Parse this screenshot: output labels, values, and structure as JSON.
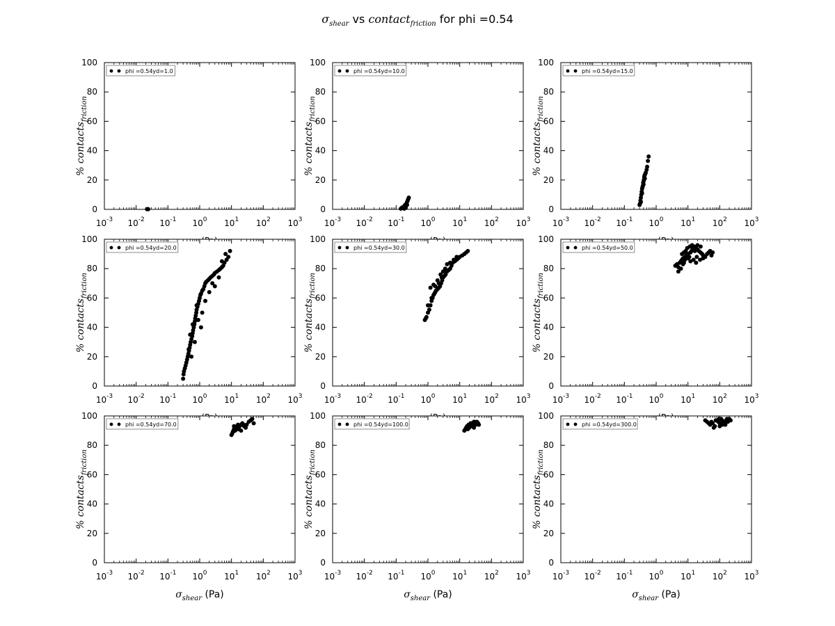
{
  "figure": {
    "title": "σshear vs contactfriction for phi =0.54",
    "title_parts": {
      "sigma": "σ",
      "sigma_sub": "shear",
      "mid": " vs ",
      "contact": "contact",
      "contact_sub": "friction",
      "tail": " for phi =0.54"
    },
    "xlabel": {
      "sigma": "σ",
      "sub": "shear",
      "unit": " (Pa)"
    },
    "xlabel_clipped": "(Pa)",
    "ylabel": {
      "prefix": "% contacts",
      "sub": "friction"
    },
    "x_tick_labels": [
      {
        "base": "10",
        "exp": "-3"
      },
      {
        "base": "10",
        "exp": "-2"
      },
      {
        "base": "10",
        "exp": "-1"
      },
      {
        "base": "10",
        "exp": "0"
      },
      {
        "base": "10",
        "exp": "1"
      },
      {
        "base": "10",
        "exp": "2"
      },
      {
        "base": "10",
        "exp": "3"
      }
    ],
    "y_tick_labels": [
      "0",
      "20",
      "40",
      "60",
      "80",
      "100"
    ],
    "colors": {
      "marker": "#000000",
      "axes": "#000000",
      "legend_border": "#8c8c8c",
      "background": "#ffffff"
    }
  },
  "chart_data": [
    {
      "type": "scatter",
      "legend": "phi =0.54yd=1.0",
      "xscale": "log",
      "xlim": [
        0.001,
        1000
      ],
      "ylim": [
        0,
        100
      ],
      "series": [
        {
          "name": "phi =0.54yd=1.0",
          "x": [
            0.022,
            0.023,
            0.024
          ],
          "y": [
            0.1,
            0.2,
            0.1
          ]
        }
      ]
    },
    {
      "type": "scatter",
      "legend": "phi =0.54yd=10.0",
      "xscale": "log",
      "xlim": [
        0.001,
        1000
      ],
      "ylim": [
        0,
        100
      ],
      "series": [
        {
          "name": "phi =0.54yd=10.0",
          "x": [
            0.14,
            0.15,
            0.16,
            0.17,
            0.18,
            0.19,
            0.2,
            0.21,
            0.22,
            0.23,
            0.24,
            0.25,
            0.18,
            0.2,
            0.22
          ],
          "y": [
            0.5,
            1,
            1.5,
            1,
            2,
            3,
            2.5,
            4,
            5,
            6,
            7,
            8,
            0.5,
            1,
            3
          ]
        }
      ]
    },
    {
      "type": "scatter",
      "legend": "phi =0.54yd=15.0",
      "xscale": "log",
      "xlim": [
        0.001,
        1000
      ],
      "ylim": [
        0,
        100
      ],
      "series": [
        {
          "name": "phi =0.54yd=15.0",
          "x": [
            0.3,
            0.31,
            0.32,
            0.33,
            0.34,
            0.35,
            0.36,
            0.37,
            0.38,
            0.39,
            0.4,
            0.41,
            0.42,
            0.43,
            0.45,
            0.47,
            0.5,
            0.52,
            0.55,
            0.58,
            0.33,
            0.36,
            0.4,
            0.44
          ],
          "y": [
            3,
            4,
            6,
            8,
            10,
            12,
            14,
            15,
            16,
            18,
            19,
            20,
            22,
            23,
            24,
            25,
            27,
            29,
            33,
            36,
            5,
            11,
            17,
            21
          ]
        }
      ]
    },
    {
      "type": "scatter",
      "legend": "phi =0.54yd=20.0",
      "xscale": "log",
      "xlim": [
        0.001,
        1000
      ],
      "ylim": [
        0,
        100
      ],
      "series": [
        {
          "name": "phi =0.54yd=20.0",
          "x": [
            0.3,
            0.31,
            0.32,
            0.34,
            0.36,
            0.38,
            0.4,
            0.42,
            0.44,
            0.46,
            0.48,
            0.5,
            0.52,
            0.55,
            0.58,
            0.6,
            0.62,
            0.65,
            0.68,
            0.7,
            0.72,
            0.75,
            0.78,
            0.8,
            0.85,
            0.9,
            0.95,
            1.0,
            1.05,
            1.1,
            1.2,
            1.3,
            1.4,
            1.5,
            1.6,
            1.8,
            2.0,
            2.2,
            2.5,
            2.8,
            3.0,
            3.5,
            4.0,
            4.5,
            5.0,
            5.5,
            6.0,
            7.0,
            8.0,
            9.0,
            0.5,
            0.6,
            0.7,
            0.9,
            1.2,
            1.5,
            2.0,
            3.0,
            4.0,
            0.45,
            0.55,
            0.8,
            1.1,
            2.5,
            5.0,
            6.5
          ],
          "y": [
            5,
            8,
            10,
            12,
            14,
            16,
            18,
            20,
            22,
            24,
            26,
            28,
            30,
            32,
            34,
            36,
            38,
            40,
            42,
            44,
            46,
            48,
            50,
            52,
            54,
            56,
            58,
            60,
            62,
            63,
            65,
            66,
            68,
            70,
            71,
            72,
            73,
            74,
            75,
            76,
            77,
            78,
            79,
            80,
            81,
            82,
            84,
            86,
            88,
            92,
            35,
            42,
            30,
            45,
            50,
            58,
            64,
            68,
            74,
            25,
            20,
            55,
            40,
            70,
            85,
            90
          ]
        }
      ]
    },
    {
      "type": "scatter",
      "legend": "phi =0.54yd=30.0",
      "xscale": "log",
      "xlim": [
        0.001,
        1000
      ],
      "ylim": [
        0,
        100
      ],
      "series": [
        {
          "name": "phi =0.54yd=30.0",
          "x": [
            0.8,
            0.85,
            0.9,
            1.0,
            1.1,
            1.2,
            1.3,
            1.4,
            1.5,
            1.6,
            1.7,
            1.8,
            2.0,
            2.2,
            2.4,
            2.6,
            2.8,
            3.0,
            3.3,
            3.6,
            4.0,
            4.5,
            5.0,
            5.5,
            6.0,
            7.0,
            8.0,
            9.0,
            10.0,
            12.0,
            14.0,
            16.0,
            18.0,
            1.2,
            1.5,
            2.0,
            2.5,
            3.0,
            3.5,
            1.0,
            1.3,
            1.7,
            2.2,
            2.7,
            4.0,
            5.0,
            6.5,
            8.0
          ],
          "y": [
            45,
            46,
            47,
            50,
            52,
            55,
            58,
            60,
            62,
            63,
            64,
            65,
            66,
            67,
            68,
            70,
            72,
            74,
            75,
            76,
            78,
            79,
            80,
            82,
            84,
            85,
            86,
            87,
            88,
            89,
            90,
            91,
            92,
            67,
            69,
            72,
            76,
            78,
            80,
            55,
            60,
            68,
            70,
            74,
            83,
            84,
            86,
            88
          ]
        }
      ]
    },
    {
      "type": "scatter",
      "legend": "phi =0.54yd=50.0",
      "xscale": "log",
      "xlim": [
        0.001,
        1000
      ],
      "ylim": [
        0,
        100
      ],
      "series": [
        {
          "name": "phi =0.54yd=50.0",
          "x": [
            4.0,
            4.5,
            5.0,
            5.5,
            6.0,
            6.5,
            7.0,
            7.5,
            8.0,
            9.0,
            10.0,
            11.0,
            12.0,
            13.0,
            14.0,
            15.0,
            16.0,
            18.0,
            20.0,
            22.0,
            25.0,
            28.0,
            30.0,
            35.0,
            40.0,
            45.0,
            50.0,
            55.0,
            60.0,
            5.0,
            6.0,
            7.0,
            8.0,
            10.0,
            12.0,
            15.0,
            18.0,
            20.0,
            25.0,
            30.0,
            8.5,
            9.5,
            11.5,
            13.5,
            16.5,
            19.0,
            24.0,
            6.5,
            7.5
          ],
          "y": [
            82,
            83,
            81,
            84,
            85,
            86,
            87,
            84,
            88,
            89,
            90,
            88,
            91,
            92,
            93,
            94,
            95,
            94,
            93,
            92,
            91,
            90,
            89,
            88,
            90,
            91,
            92,
            89,
            91,
            78,
            80,
            83,
            86,
            87,
            85,
            86,
            84,
            96,
            95,
            87,
            92,
            94,
            95,
            96,
            92,
            88,
            86,
            90,
            91
          ]
        }
      ]
    },
    {
      "type": "scatter",
      "legend": "phi =0.54yd=70.0",
      "xscale": "log",
      "xlim": [
        0.001,
        1000
      ],
      "ylim": [
        0,
        100
      ],
      "series": [
        {
          "name": "phi =0.54yd=70.0",
          "x": [
            10.0,
            10.5,
            11.0,
            11.5,
            12.0,
            12.5,
            13.0,
            14.0,
            15.0,
            16.0,
            17.0,
            18.0,
            20.0,
            22.0,
            25.0,
            28.0,
            30.0,
            35.0,
            40.0,
            45.0,
            50.0,
            12.0,
            14.0,
            16.0,
            20.0,
            24.0
          ],
          "y": [
            87,
            88,
            89,
            90,
            91,
            92,
            90,
            91,
            93,
            94,
            92,
            93,
            94,
            95,
            93,
            92,
            94,
            96,
            97,
            98,
            95,
            93,
            92,
            91,
            90,
            94
          ]
        }
      ]
    },
    {
      "type": "scatter",
      "legend": "phi =0.54yd=100.0",
      "xscale": "log",
      "xlim": [
        0.001,
        1000
      ],
      "ylim": [
        0,
        100
      ],
      "series": [
        {
          "name": "phi =0.54yd=100.0",
          "x": [
            14.0,
            15.0,
            16.0,
            17.0,
            18.0,
            19.0,
            20.0,
            22.0,
            24.0,
            26.0,
            28.0,
            30.0,
            32.0,
            35.0,
            38.0,
            40.0,
            18.0,
            20.0,
            25.0,
            30.0,
            22.0,
            28.0
          ],
          "y": [
            90,
            91,
            92,
            93,
            92,
            94,
            93,
            94,
            95,
            94,
            96,
            95,
            94,
            96,
            95,
            94,
            91,
            92,
            93,
            96,
            95,
            92
          ]
        }
      ]
    },
    {
      "type": "scatter",
      "legend": "phi =0.54yd=300.0",
      "xscale": "log",
      "xlim": [
        0.001,
        1000
      ],
      "ylim": [
        0,
        100
      ],
      "series": [
        {
          "name": "phi =0.54yd=300.0",
          "x": [
            35.0,
            40.0,
            45.0,
            50.0,
            55.0,
            60.0,
            65.0,
            70.0,
            80.0,
            90.0,
            100.0,
            110.0,
            120.0,
            130.0,
            140.0,
            150.0,
            160.0,
            180.0,
            200.0,
            220.0,
            75.0,
            95.0,
            120.0,
            150.0,
            100.0,
            170.0
          ],
          "y": [
            97,
            96,
            95,
            94,
            96,
            95,
            92,
            93,
            97,
            96,
            95,
            98,
            97,
            96,
            95,
            94,
            97,
            96,
            98,
            97,
            97,
            98,
            94,
            96,
            93,
            98
          ]
        }
      ]
    }
  ]
}
